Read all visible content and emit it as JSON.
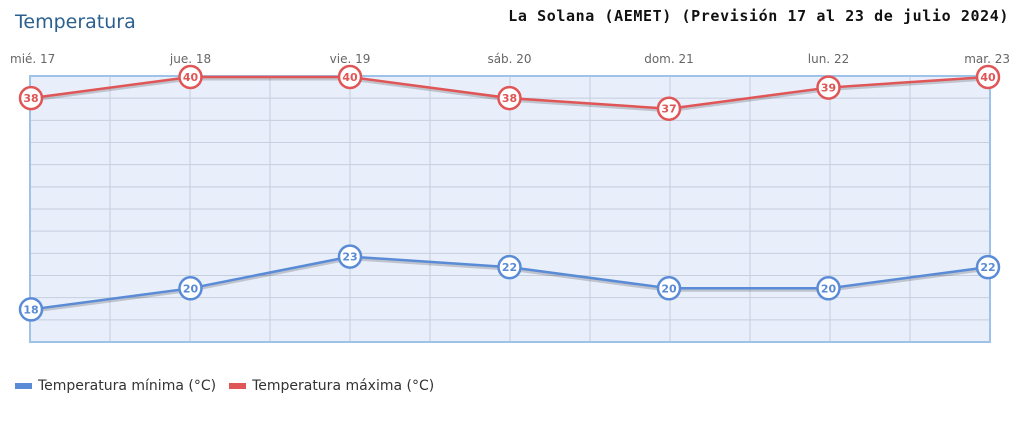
{
  "heading": "Temperatura",
  "chart_data": {
    "type": "line",
    "title": "La Solana (AEMET) (Previsión 17 al 23 de julio 2024)",
    "categories": [
      "mié. 17",
      "jue. 18",
      "vie. 19",
      "sáb. 20",
      "dom. 21",
      "lun. 22",
      "mar. 23"
    ],
    "series": [
      {
        "name": "Temperatura mínima (°C)",
        "values": [
          18,
          20,
          23,
          22,
          20,
          20,
          22
        ],
        "color": "#5a8bd6"
      },
      {
        "name": "Temperatura máxima (°C)",
        "values": [
          38,
          40,
          40,
          38,
          37,
          39,
          40
        ],
        "color": "#e05555"
      }
    ],
    "ylim": [
      17,
      40
    ],
    "grid": true,
    "data_labels": true,
    "legend": "bottom-left",
    "colors": {
      "plot_background": "#e8eefa",
      "plot_border": "#9fc3e8",
      "grid": "#c5cfdf"
    }
  }
}
